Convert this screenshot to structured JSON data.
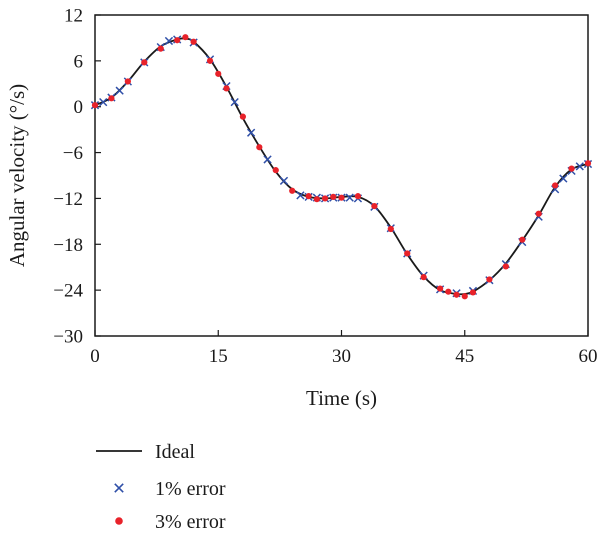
{
  "chart_data": {
    "type": "line",
    "xlabel": "Time (s)",
    "ylabel": "Angular velocity (°/s)",
    "xlim": [
      0,
      60
    ],
    "ylim": [
      -30,
      12
    ],
    "xticks": [
      0,
      15,
      30,
      45,
      60
    ],
    "xtick_labels": [
      "0",
      "15",
      "30",
      "45",
      "60"
    ],
    "yticks": [
      12,
      6,
      0,
      -6,
      -12,
      -18,
      -24,
      -30
    ],
    "ytick_labels": [
      "12",
      "6",
      "0",
      "−6",
      "−12",
      "−18",
      "−24",
      "−30"
    ],
    "grid": false,
    "legend_position": "bottom-left, below the plot",
    "series": [
      {
        "name": "Ideal",
        "style": "line",
        "color": "#1a1a1a",
        "x": [
          0,
          2,
          4,
          6,
          8,
          10,
          11,
          12,
          14,
          16,
          18,
          20,
          22,
          24,
          26,
          28,
          30,
          32,
          34,
          36,
          38,
          40,
          42,
          44,
          45,
          46,
          48,
          50,
          52,
          54,
          56,
          58,
          60
        ],
        "y": [
          0.2,
          1.2,
          3.3,
          5.9,
          7.9,
          8.8,
          8.9,
          8.5,
          6.2,
          2.6,
          -1.5,
          -5.2,
          -8.5,
          -10.8,
          -11.8,
          -12.0,
          -11.8,
          -11.8,
          -13.0,
          -15.8,
          -19.3,
          -22.2,
          -24.0,
          -24.5,
          -24.5,
          -24.2,
          -22.7,
          -20.5,
          -17.5,
          -14.2,
          -10.5,
          -8.2,
          -7.5
        ]
      },
      {
        "name": "1% error",
        "style": "cross",
        "color": "#2f4fa8",
        "x": [
          0,
          1,
          2,
          3,
          4,
          6,
          8,
          9,
          10,
          12,
          14,
          16,
          17,
          19,
          21,
          23,
          25,
          26,
          27,
          28,
          29,
          30,
          31,
          32,
          34,
          36,
          38,
          40,
          42,
          44,
          46,
          48,
          50,
          52,
          54,
          56,
          57,
          58,
          59,
          60
        ],
        "y": [
          0.2,
          0.6,
          1.2,
          2.1,
          3.3,
          5.8,
          7.8,
          8.6,
          8.8,
          8.4,
          6.2,
          2.7,
          0.6,
          -3.4,
          -6.9,
          -9.7,
          -11.6,
          -11.8,
          -11.9,
          -12.0,
          -11.9,
          -11.9,
          -11.9,
          -12.0,
          -13.1,
          -15.9,
          -19.2,
          -22.1,
          -23.9,
          -24.4,
          -24.1,
          -22.7,
          -20.6,
          -17.7,
          -14.4,
          -10.8,
          -9.4,
          -8.4,
          -7.8,
          -7.5
        ]
      },
      {
        "name": "3% error",
        "style": "dot",
        "color": "#e8222a",
        "x": [
          0,
          2,
          4,
          6,
          8,
          10,
          11,
          12,
          14,
          15,
          16,
          18,
          20,
          22,
          24,
          26,
          27,
          28,
          29,
          30,
          32,
          34,
          36,
          38,
          40,
          42,
          43,
          44,
          45,
          46,
          48,
          50,
          52,
          54,
          56,
          58,
          60
        ],
        "y": [
          0.2,
          1.1,
          3.3,
          5.8,
          7.6,
          8.7,
          9.1,
          8.5,
          6.0,
          4.3,
          2.4,
          -1.3,
          -5.3,
          -8.3,
          -11.0,
          -11.7,
          -12.1,
          -12.0,
          -11.8,
          -11.9,
          -11.7,
          -13.0,
          -16.0,
          -19.2,
          -22.3,
          -23.8,
          -24.2,
          -24.6,
          -24.8,
          -24.3,
          -22.6,
          -20.9,
          -17.4,
          -14.0,
          -10.3,
          -8.1,
          -7.4
        ]
      }
    ]
  }
}
